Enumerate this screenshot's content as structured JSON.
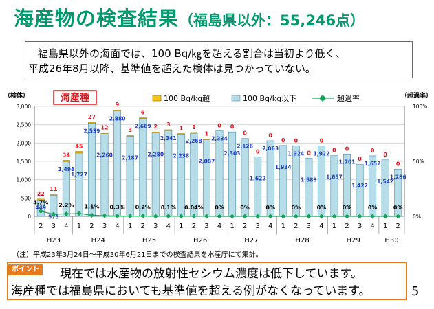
{
  "title": {
    "main": "海産物の検査結果",
    "sub": "（福島県以外：55,246点）"
  },
  "summary": {
    "line1": "福島県以外の海面では、100 Bq/㎏を超える割合は当初より低く、",
    "line2": "平成26年8月以降、基準値を超えた検体は見つかっていない。"
  },
  "note": "（注）平成23年3月24日～平成30年6月21日までの検査結果を水産庁にて集計。",
  "point": {
    "badge": "ポイント",
    "line1": "現在では水産物の放射性セシウム濃度は低下しています。",
    "line2": "海産種では福島県においても基準値を超える例がなくなっています。"
  },
  "page_number": "5",
  "chart_data": {
    "type": "bar",
    "label_box": "海産種",
    "ylabel": "（検体）",
    "y2label": "（超過率）",
    "ylim": [
      0,
      3000
    ],
    "y_ticks": [
      "0",
      "500",
      "1,000",
      "1,500",
      "2,000",
      "2,500",
      "3,000"
    ],
    "y2lim": [
      0,
      100
    ],
    "y2_ticks": [
      "0%",
      "50%",
      "100%"
    ],
    "legend": {
      "over": "100 Bq/kg超",
      "under": "100 Bq/kg以下",
      "rate": "超過率"
    },
    "colors": {
      "over": "#f5c518",
      "under": "#b7dde8",
      "under_stroke": "#4b8fa8",
      "rate": "#17a55a",
      "over_label": "#e8131b",
      "under_label": "#1e3fd0"
    },
    "quarters": [
      "2",
      "3",
      "4",
      "1",
      "2",
      "3",
      "4",
      "1",
      "2",
      "3",
      "4",
      "1",
      "2",
      "3",
      "4",
      "1",
      "2",
      "3",
      "4",
      "1",
      "2",
      "3",
      "4",
      "1",
      "2",
      "3",
      "4",
      "1",
      "2"
    ],
    "years": [
      {
        "label": "H23",
        "start": 0,
        "end": 2
      },
      {
        "label": "H24",
        "start": 3,
        "end": 6
      },
      {
        "label": "H25",
        "start": 7,
        "end": 10
      },
      {
        "label": "H26",
        "start": 11,
        "end": 14
      },
      {
        "label": "H27",
        "start": 15,
        "end": 18
      },
      {
        "label": "H28",
        "start": 19,
        "end": 22
      },
      {
        "label": "H29",
        "start": 23,
        "end": 26
      },
      {
        "label": "H30",
        "start": 27,
        "end": 28
      }
    ],
    "series": [
      {
        "name": "100 Bq/kg超",
        "values": [
          22,
          11,
          34,
          45,
          27,
          12,
          9,
          3,
          6,
          2,
          3,
          1,
          1,
          1,
          0,
          0,
          0,
          0,
          0,
          0,
          0,
          0,
          0,
          0,
          0,
          0,
          0,
          0,
          0
        ]
      },
      {
        "name": "100 Bq/kg以下",
        "values": [
          449,
          575,
          1498,
          1727,
          2539,
          2260,
          2880,
          2187,
          2669,
          2280,
          2341,
          2238,
          2268,
          2087,
          2334,
          2303,
          2126,
          1622,
          2063,
          1934,
          1924,
          1583,
          1922,
          1657,
          1701,
          1422,
          1652,
          1542,
          1286
        ]
      }
    ],
    "rate_labels": [
      {
        "index": 0,
        "text": "4.7%"
      },
      {
        "index": 2,
        "text": "2.2%"
      },
      {
        "index": 4,
        "text": "1.1%"
      },
      {
        "index": 6,
        "text": "0.3%"
      },
      {
        "index": 8,
        "text": "0.2%"
      },
      {
        "index": 10,
        "text": "0.1%"
      },
      {
        "index": 12,
        "text": "0.04%"
      },
      {
        "index": 14,
        "text": "0%"
      },
      {
        "index": 16,
        "text": "0%"
      },
      {
        "index": 18,
        "text": "0%"
      },
      {
        "index": 20,
        "text": "0%"
      },
      {
        "index": 22,
        "text": "0%"
      },
      {
        "index": 24,
        "text": "0%"
      },
      {
        "index": 26,
        "text": "0%"
      },
      {
        "index": 28,
        "text": "0%"
      }
    ],
    "grid": true,
    "legend_position": "top"
  }
}
